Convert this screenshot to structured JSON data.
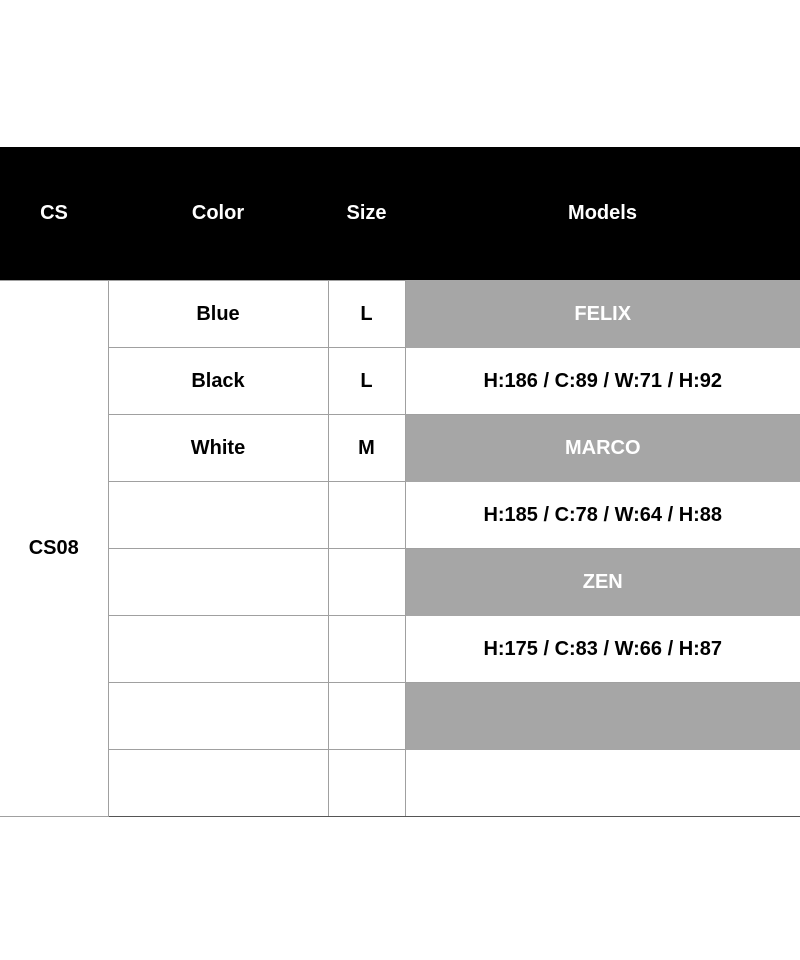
{
  "header": {
    "cs": "CS",
    "color": "Color",
    "size": "Size",
    "models": "Models"
  },
  "cs_value": "CS08",
  "rows": [
    {
      "color": "Blue",
      "size": "L",
      "model": "FELIX",
      "highlight": true
    },
    {
      "color": "Black",
      "size": "L",
      "model": "H:186 / C:89 / W:71 / H:92",
      "highlight": false
    },
    {
      "color": "White",
      "size": "M",
      "model": "MARCO",
      "highlight": true
    },
    {
      "color": "",
      "size": "",
      "model": "H:185 / C:78 / W:64 / H:88",
      "highlight": false
    },
    {
      "color": "",
      "size": "",
      "model": "ZEN",
      "highlight": true
    },
    {
      "color": "",
      "size": "",
      "model": "H:175 / C:83 / W:66 / H:87",
      "highlight": false
    },
    {
      "color": "",
      "size": "",
      "model": "",
      "highlight": true
    },
    {
      "color": "",
      "size": "",
      "model": "",
      "highlight": false
    }
  ],
  "colors": {
    "header_bg": "#000000",
    "highlight_bg": "#a6a6a6"
  }
}
